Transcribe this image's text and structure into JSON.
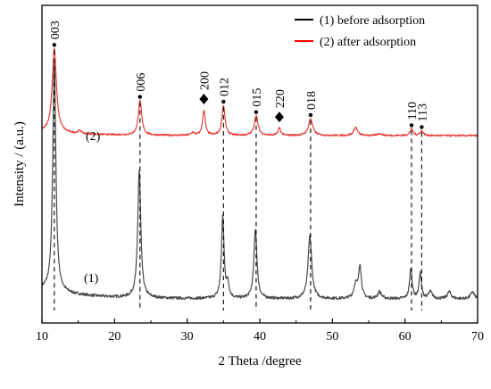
{
  "chart_data": {
    "type": "line",
    "xlabel": "2 Theta /degree",
    "ylabel": "Intensity / (a.u.)",
    "xlim": [
      10,
      70
    ],
    "x_ticks": [
      10,
      20,
      30,
      40,
      50,
      60,
      70
    ],
    "y_ticks_shown": false,
    "grid": false,
    "legend_position": "top-right",
    "legend": [
      {
        "label": "(1) before adsorption",
        "color": "#000000"
      },
      {
        "label": "(2) after adsorption",
        "color": "#ff0000"
      }
    ],
    "series_labels": [
      {
        "text": "(2)",
        "series": "after"
      },
      {
        "text": "(1)",
        "series": "before"
      }
    ],
    "series": [
      {
        "name": "(1) before adsorption",
        "key": "before",
        "color": "#4a4a4a",
        "baseline": 0,
        "noise": 0.6,
        "peaks": [
          [
            11.7,
            100,
            0.25
          ],
          [
            23.4,
            55,
            0.25
          ],
          [
            34.9,
            35,
            0.22
          ],
          [
            35.6,
            6,
            0.2
          ],
          [
            39.4,
            30,
            0.25
          ],
          [
            46.9,
            27,
            0.3
          ],
          [
            53.2,
            6,
            0.3
          ],
          [
            53.8,
            14,
            0.22
          ],
          [
            56.5,
            3,
            0.3
          ],
          [
            60.8,
            13,
            0.2
          ],
          [
            62.1,
            11,
            0.2
          ],
          [
            63.5,
            3,
            0.3
          ],
          [
            66.1,
            3,
            0.3
          ],
          [
            69.3,
            3,
            0.3
          ]
        ]
      },
      {
        "name": "(2) after adsorption",
        "key": "after",
        "color": "#e8413c",
        "baseline": 0,
        "noise": 0.9,
        "peaks": [
          [
            11.7,
            90,
            0.35
          ],
          [
            23.5,
            37,
            0.28
          ],
          [
            32.3,
            27,
            0.22
          ],
          [
            35.0,
            32,
            0.25
          ],
          [
            39.5,
            21,
            0.3
          ],
          [
            42.7,
            8,
            0.22
          ],
          [
            47.0,
            18,
            0.35
          ],
          [
            53.2,
            9,
            0.3
          ],
          [
            60.9,
            7,
            0.25
          ],
          [
            62.3,
            5,
            0.25
          ],
          [
            30.8,
            3,
            0.25
          ],
          [
            15.2,
            3,
            0.3
          ],
          [
            56.5,
            2,
            0.4
          ]
        ]
      }
    ],
    "peak_labels": [
      {
        "text": "003",
        "x": 11.7,
        "marker": "dot"
      },
      {
        "text": "006",
        "x": 23.5,
        "marker": "dot"
      },
      {
        "text": "200",
        "x": 32.3,
        "marker": "diamond"
      },
      {
        "text": "012",
        "x": 35.0,
        "marker": "dot"
      },
      {
        "text": "015",
        "x": 39.5,
        "marker": "dot"
      },
      {
        "text": "220",
        "x": 42.7,
        "marker": "diamond"
      },
      {
        "text": "018",
        "x": 47.0,
        "marker": "dot"
      },
      {
        "text": "110",
        "x": 60.9,
        "marker": "dot"
      },
      {
        "text": "113",
        "x": 62.3,
        "marker": "dot"
      }
    ],
    "reference_lines_x": [
      11.7,
      23.5,
      35.0,
      39.5,
      47.0,
      60.9,
      62.3
    ]
  }
}
